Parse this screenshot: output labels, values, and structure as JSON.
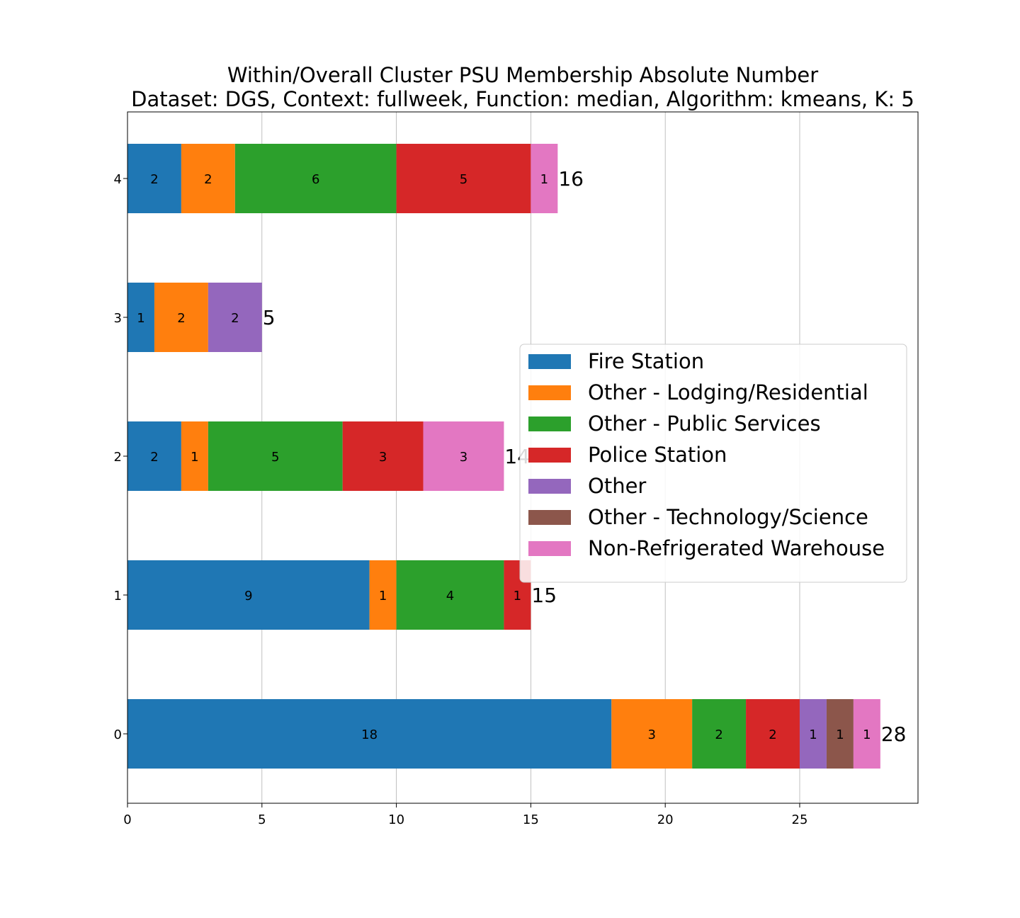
{
  "chart_data": {
    "type": "bar",
    "orientation": "horizontal",
    "stacked": true,
    "title": "Within/Overall Cluster PSU Membership Absolute Number",
    "subtitle": "Dataset: DGS, Context: fullweek, Function: median, Algorithm: kmeans, K: 5",
    "xlabel": "",
    "ylabel": "",
    "xlim": [
      0,
      29.4
    ],
    "xticks": [
      0,
      5,
      10,
      15,
      20,
      25
    ],
    "grid": "vertical",
    "legend_position": "center-right",
    "categories": [
      "0",
      "1",
      "2",
      "3",
      "4"
    ],
    "series": [
      {
        "name": "Fire Station",
        "color": "#1f77b4",
        "values": [
          18,
          9,
          2,
          1,
          2
        ]
      },
      {
        "name": "Other - Lodging/Residential",
        "color": "#ff7f0e",
        "values": [
          3,
          1,
          1,
          2,
          2
        ]
      },
      {
        "name": "Other - Public Services",
        "color": "#2ca02c",
        "values": [
          2,
          4,
          5,
          0,
          6
        ]
      },
      {
        "name": "Police Station",
        "color": "#d62728",
        "values": [
          2,
          1,
          3,
          0,
          5
        ]
      },
      {
        "name": "Other",
        "color": "#9467bd",
        "values": [
          1,
          0,
          0,
          2,
          0
        ]
      },
      {
        "name": "Other - Technology/Science",
        "color": "#8c564b",
        "values": [
          1,
          0,
          0,
          0,
          0
        ]
      },
      {
        "name": "Non-Refrigerated Warehouse",
        "color": "#e377c2",
        "values": [
          1,
          0,
          3,
          0,
          1
        ]
      }
    ],
    "totals": [
      28,
      15,
      14,
      5,
      16
    ]
  }
}
